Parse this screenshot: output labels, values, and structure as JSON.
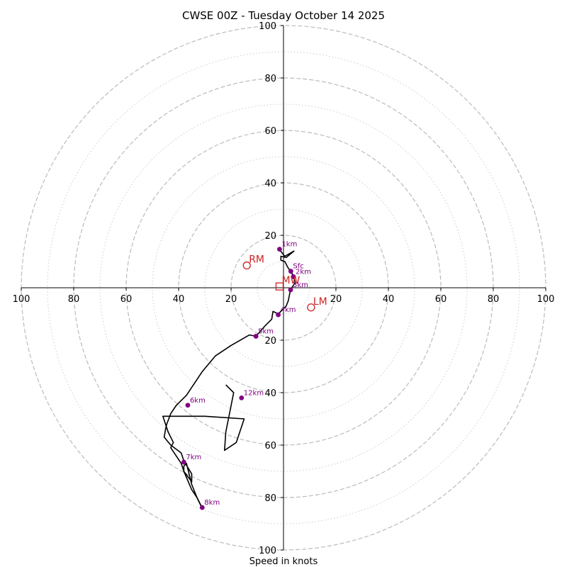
{
  "chart_data": {
    "type": "hodograph",
    "title": "CWSE 00Z - Tuesday October 14 2025",
    "xlabel": "Speed in knots",
    "range": [
      -100,
      100
    ],
    "ring_major": [
      20,
      40,
      60,
      80,
      100
    ],
    "ring_minor": [
      10,
      30,
      50,
      70,
      90
    ],
    "x_tick_values": [
      -100,
      -80,
      -60,
      -40,
      -20,
      20,
      40,
      60,
      80,
      100
    ],
    "x_tick_labels": [
      "100",
      "80",
      "60",
      "40",
      "20",
      "20",
      "40",
      "60",
      "80",
      "100"
    ],
    "y_tick_values": [
      100,
      80,
      60,
      40,
      20,
      -20,
      -40,
      -60,
      -80,
      -100
    ],
    "y_tick_labels": [
      "100",
      "80",
      "60",
      "40",
      "20",
      "20",
      "40",
      "60",
      "80",
      "100"
    ],
    "trace": {
      "color": "#000000",
      "points": [
        [
          2.8,
          6.3
        ],
        [
          4.0,
          4.0
        ],
        [
          4.5,
          2.0
        ],
        [
          2.7,
          -0.7
        ],
        [
          1.8,
          -5.0
        ],
        [
          1.0,
          -7.0
        ],
        [
          -2.0,
          -10.0
        ],
        [
          -4.0,
          -9.0
        ],
        [
          -4.5,
          -12.0
        ],
        [
          -7.0,
          -14.5
        ],
        [
          -10.5,
          -18.5
        ],
        [
          -13.0,
          -18.0
        ],
        [
          -20.0,
          -22.0
        ],
        [
          -26.0,
          -26.0
        ],
        [
          -31.0,
          -32.0
        ],
        [
          -35.0,
          -38.0
        ],
        [
          -37.0,
          -41.0
        ],
        [
          -39.0,
          -43.0
        ],
        [
          -41.0,
          -45.0
        ],
        [
          -43.0,
          -48.0
        ],
        [
          -44.5,
          -52.0
        ],
        [
          -45.0,
          -54.0
        ],
        [
          -45.5,
          -57.0
        ],
        [
          -43.0,
          -60.0
        ],
        [
          -39.0,
          -63.0
        ],
        [
          -38.0,
          -66.0
        ],
        [
          -35.0,
          -71.0
        ],
        [
          -35.0,
          -74.0
        ],
        [
          -38.0,
          -70.0
        ],
        [
          -38.0,
          -68.0
        ],
        [
          -37.0,
          -67.0
        ],
        [
          -35.0,
          -75.0
        ],
        [
          -33.0,
          -80.0
        ],
        [
          -31.5,
          -83.0
        ],
        [
          -31.0,
          -84.0
        ],
        [
          -30.5,
          -84.3
        ]
      ],
      "upper_points": [
        [
          -30.5,
          -84.3
        ],
        [
          -31.5,
          -83.0
        ],
        [
          -33.0,
          -80.0
        ],
        [
          -35.0,
          -77.0
        ],
        [
          -38.0,
          -70.0
        ],
        [
          -39.0,
          -67.0
        ],
        [
          -43.0,
          -61.0
        ],
        [
          -42.0,
          -59.0
        ],
        [
          -44.0,
          -55.0
        ],
        [
          -46.0,
          -49.0
        ],
        [
          -30.0,
          -49.0
        ],
        [
          -15.0,
          -50.0
        ],
        [
          -18.0,
          -59.0
        ],
        [
          -22.5,
          -62.0
        ],
        [
          -22.0,
          -55.0
        ],
        [
          -19.0,
          -40.0
        ],
        [
          -22.0,
          -37.0
        ]
      ],
      "low_points": [
        [
          2.8,
          6.3
        ],
        [
          3.5,
          5.0
        ],
        [
          1.5,
          8.0
        ],
        [
          0.5,
          10.0
        ],
        [
          -1.0,
          10.5
        ],
        [
          -1.0,
          12.0
        ],
        [
          1.0,
          11.5
        ],
        [
          4.0,
          14.0
        ],
        [
          0.5,
          12.0
        ],
        [
          -1.5,
          14.5
        ],
        [
          -1.5,
          15.5
        ]
      ]
    },
    "height_markers": [
      {
        "label": "Sfc",
        "u": 2.8,
        "v": 6.3
      },
      {
        "label": "1km",
        "u": -1.5,
        "v": 14.7
      },
      {
        "label": "2km",
        "u": 3.8,
        "v": 4.2
      },
      {
        "label": "3km",
        "u": 2.7,
        "v": -0.8
      },
      {
        "label": "4km",
        "u": -2.0,
        "v": -10.3
      },
      {
        "label": "5km",
        "u": -10.5,
        "v": -18.5
      },
      {
        "label": "6km",
        "u": -36.5,
        "v": -44.8
      },
      {
        "label": "7km",
        "u": -38.0,
        "v": -66.5
      },
      {
        "label": "8km",
        "u": -31.0,
        "v": -83.8
      },
      {
        "label": "12km",
        "u": -16.0,
        "v": -42.0
      }
    ],
    "motion_markers": [
      {
        "label": "RM",
        "u": -14.0,
        "v": 8.5,
        "shape": "circle"
      },
      {
        "label": "LM",
        "u": 10.5,
        "v": -7.5,
        "shape": "circle"
      },
      {
        "label": "MW",
        "u": -1.5,
        "v": 0.5,
        "shape": "square"
      }
    ],
    "colors": {
      "trace": "#000000",
      "height_marker": "#800080",
      "motion_marker": "#cc2222",
      "ring_major": "#bbbbbb",
      "ring_minor": "#cccccc",
      "axis": "#000000"
    }
  }
}
